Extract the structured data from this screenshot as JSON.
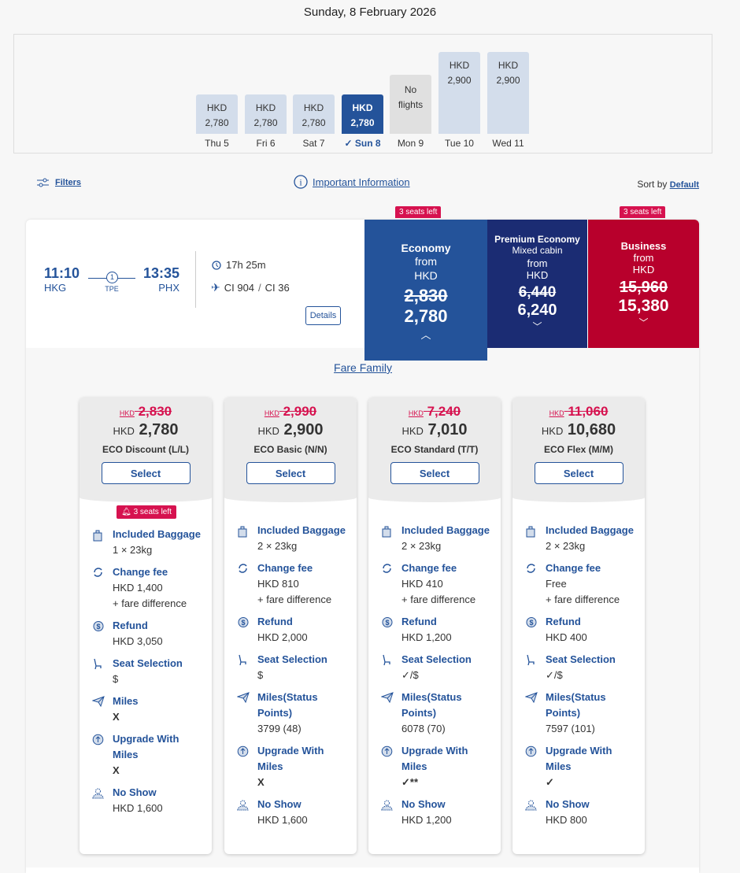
{
  "date_title": "Sunday, 8 February 2026",
  "calendar": [
    {
      "day": "Thu 5",
      "currency": "HKD",
      "price": "2,780",
      "value": 2780
    },
    {
      "day": "Fri 6",
      "currency": "HKD",
      "price": "2,780",
      "value": 2780
    },
    {
      "day": "Sat 7",
      "currency": "HKD",
      "price": "2,780",
      "value": 2780
    },
    {
      "day": "Sun 8",
      "currency": "HKD",
      "price": "2,780",
      "value": 2780,
      "selected": true
    },
    {
      "day": "Mon 9",
      "no_flights": "No flights"
    },
    {
      "day": "Tue 10",
      "currency": "HKD",
      "price": "2,900",
      "value": 2900
    },
    {
      "day": "Wed 11",
      "currency": "HKD",
      "price": "2,900",
      "value": 2900
    }
  ],
  "toolbar": {
    "filters": "Filters",
    "important_info": "Important Information",
    "sort_by": "Sort by",
    "sort_value": "Default"
  },
  "flight": {
    "dep_time": "11:10",
    "dep_code": "HKG",
    "arr_time": "13:35",
    "arr_code": "PHX",
    "stops": "1",
    "via": "TPE",
    "duration": "17h 25m",
    "flight_no": "CI 904",
    "flight_no2": "CI 36",
    "details": "Details"
  },
  "cabins": {
    "economy": {
      "name": "Economy",
      "from": "from",
      "currency": "HKD",
      "old": "2,830",
      "price": "2,780",
      "seats": "3 seats left",
      "color": "#24539a"
    },
    "premium": {
      "name": "Premium Economy",
      "sub": "Mixed cabin",
      "from": "from",
      "currency": "HKD",
      "old": "6,440",
      "price": "6,240",
      "color": "#1b2c73"
    },
    "business": {
      "name": "Business",
      "from": "from",
      "currency": "HKD",
      "old": "15,960",
      "price": "15,380",
      "seats": "3 seats left",
      "color": "#b8002c"
    }
  },
  "fare_family_title": "Fare Family",
  "fares": [
    {
      "old_cur": "HKD",
      "old": "2,830",
      "cur": "HKD",
      "price": "2,780",
      "name": "ECO Discount (L/L)",
      "select": "Select",
      "seats": "3 seats left",
      "rows": [
        [
          "Included Baggage",
          "1 × 23kg"
        ],
        [
          "Change fee",
          "HKD 1,400\n+ fare difference"
        ],
        [
          "Refund",
          "HKD 3,050"
        ],
        [
          "Seat Selection",
          "$"
        ],
        [
          "Miles",
          "X"
        ],
        [
          "Upgrade With Miles",
          "X"
        ],
        [
          "No Show",
          "HKD 1,600"
        ]
      ]
    },
    {
      "old_cur": "HKD",
      "old": "2,990",
      "cur": "HKD",
      "price": "2,900",
      "name": "ECO Basic (N/N)",
      "select": "Select",
      "rows": [
        [
          "Included Baggage",
          "2 × 23kg"
        ],
        [
          "Change fee",
          "HKD 810\n+ fare difference"
        ],
        [
          "Refund",
          "HKD 2,000"
        ],
        [
          "Seat Selection",
          "$"
        ],
        [
          "Miles(Status Points)",
          "3799 (48)"
        ],
        [
          "Upgrade With Miles",
          "X"
        ],
        [
          "No Show",
          "HKD 1,600"
        ]
      ]
    },
    {
      "old_cur": "HKD",
      "old": "7,240",
      "cur": "HKD",
      "price": "7,010",
      "name": "ECO Standard (T/T)",
      "select": "Select",
      "rows": [
        [
          "Included Baggage",
          "2 × 23kg"
        ],
        [
          "Change fee",
          "HKD 410\n+ fare difference"
        ],
        [
          "Refund",
          "HKD 1,200"
        ],
        [
          "Seat Selection",
          "✓/$"
        ],
        [
          "Miles(Status Points)",
          "6078 (70)"
        ],
        [
          "Upgrade With Miles",
          "✓**"
        ],
        [
          "No Show",
          "HKD 1,200"
        ]
      ]
    },
    {
      "old_cur": "HKD",
      "old": "11,060",
      "cur": "HKD",
      "price": "10,680",
      "name": "ECO Flex (M/M)",
      "select": "Select",
      "rows": [
        [
          "Included Baggage",
          "2 × 23kg"
        ],
        [
          "Change fee",
          "Free\n+ fare difference"
        ],
        [
          "Refund",
          "HKD 400"
        ],
        [
          "Seat Selection",
          "✓/$"
        ],
        [
          "Miles(Status Points)",
          "7597 (101)"
        ],
        [
          "Upgrade With Miles",
          "✓"
        ],
        [
          "No Show",
          "HKD 800"
        ]
      ]
    }
  ],
  "row_icons": [
    "baggage-icon",
    "change-fee-icon",
    "refund-icon",
    "seat-icon",
    "miles-icon",
    "upgrade-icon",
    "no-show-icon"
  ]
}
